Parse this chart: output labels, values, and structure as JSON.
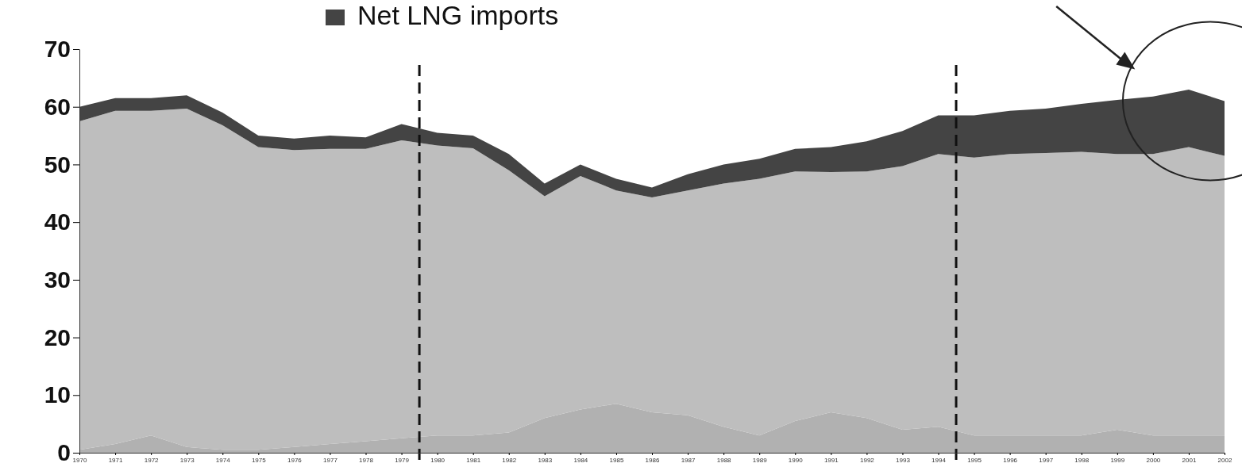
{
  "chart_data": {
    "type": "area",
    "stacked": true,
    "legend": "top",
    "grid": false,
    "x": [
      1970,
      1971,
      1972,
      1973,
      1974,
      1975,
      1976,
      1977,
      1978,
      1979,
      1980,
      1981,
      1982,
      1983,
      1984,
      1985,
      1986,
      1987,
      1988,
      1989,
      1990,
      1991,
      1992,
      1993,
      1994,
      1995,
      1996,
      1997,
      1998,
      1999,
      2000,
      2001,
      2002
    ],
    "xlim": [
      1970,
      2002
    ],
    "xticks": [
      1970,
      1971,
      1972,
      1973,
      1974,
      1975,
      1976,
      1977,
      1978,
      1979,
      1980,
      1981,
      1982,
      1983,
      1984,
      1985,
      1986,
      1987,
      1988,
      1989,
      1990,
      1991,
      1992,
      1993,
      1994,
      1995,
      1996,
      1997,
      1998,
      1999,
      2000,
      2001,
      2002
    ],
    "ylim": [
      0,
      70
    ],
    "yticks": [
      0,
      10,
      20,
      30,
      40,
      50,
      60,
      70
    ],
    "series": [
      {
        "color": "#b1b1b1",
        "values": [
          0.5,
          1.5,
          3,
          1,
          0.5,
          0.5,
          1,
          1.5,
          2,
          2.5,
          3,
          3,
          3.5,
          6,
          7.5,
          8.5,
          7,
          6.5,
          4.5,
          3,
          5.5,
          7,
          6,
          4,
          4.5,
          3,
          3,
          3,
          3,
          4,
          3,
          3,
          3
        ]
      },
      {
        "color": "#bebebe",
        "values": [
          57,
          57.8,
          56.3,
          58.7,
          56.3,
          52.5,
          51.5,
          51.2,
          50.7,
          51.7,
          50.3,
          49.8,
          45.5,
          38.5,
          40.5,
          37,
          37.3,
          39,
          42.2,
          44.5,
          43.3,
          41.7,
          42.8,
          45.7,
          47.3,
          48.2,
          48.8,
          49,
          49.2,
          47.8,
          48.8,
          50,
          48.5
        ]
      },
      {
        "name": "Net LNG imports",
        "color": "#444444",
        "values": [
          2.5,
          2.2,
          2.2,
          2.3,
          2.2,
          2,
          2,
          2.3,
          2,
          2.8,
          2.2,
          2.2,
          2.8,
          2.2,
          2,
          2,
          1.7,
          2.8,
          3.3,
          3.5,
          3.9,
          4.3,
          5.2,
          6.1,
          6.7,
          7.3,
          7.5,
          7.7,
          8.3,
          9.4,
          10,
          10,
          9.5
        ]
      }
    ],
    "ref_lines": [
      {
        "axis": "x",
        "value": 1979.5,
        "line_style": "dashed",
        "color": "#111111"
      },
      {
        "axis": "x",
        "value": 1994.5,
        "line_style": "dashed",
        "color": "#111111"
      }
    ]
  }
}
